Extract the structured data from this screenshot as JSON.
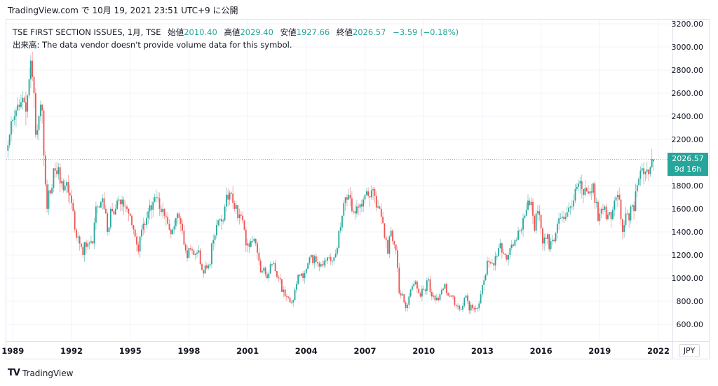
{
  "published": "TradingView.com で 10月 19, 2021 23:51 UTC+9 に公開",
  "legend": {
    "symbol": "TSE FIRST SECTION ISSUES, 1月, TSE",
    "open_label": "始値",
    "open": "2010.40",
    "high_label": "高値",
    "high": "2029.40",
    "low_label": "安値",
    "low": "1927.66",
    "close_label": "終値",
    "close": "2026.57",
    "change": "−3.59 (−0.18%)",
    "volume_note": "出来高: The data vendor doesn't provide volume data for this symbol."
  },
  "currency": "JPY",
  "last_price": {
    "value": "2026.57",
    "countdown": "9d 16h"
  },
  "brand": "TradingView",
  "colors": {
    "up": "#26a69a",
    "down": "#ef5350",
    "grid": "#f0f3fa",
    "text": "#131722"
  },
  "chart_data": {
    "type": "candlestick",
    "title": "TSE FIRST SECTION ISSUES, 1月, TSE",
    "interval": "monthly",
    "start": [
      1988,
      10
    ],
    "ylim": [
      560,
      3240
    ],
    "y_ticks": [
      "3200.00",
      "3000.00",
      "2800.00",
      "2600.00",
      "2400.00",
      "2200.00",
      "1800.00",
      "1600.00",
      "1400.00",
      "1200.00",
      "1000.00",
      "800.00",
      "600.00"
    ],
    "x_ticks": [
      "1989",
      "1992",
      "1995",
      "1998",
      "2001",
      "2004",
      "2007",
      "2010",
      "2013",
      "2016",
      "2019",
      "2022"
    ],
    "last_candle": {
      "open": 2010.4,
      "high": 2029.4,
      "low": 1927.66,
      "close": 2026.57
    },
    "closes": {
      "1988": [
        2150,
        2240,
        2357
      ],
      "1989": [
        2370,
        2400,
        2450,
        2500,
        2480,
        2520,
        2560,
        2520,
        2440,
        2580,
        2720,
        2881
      ],
      "1990": [
        2740,
        2600,
        2240,
        2280,
        2400,
        2500,
        2450,
        2060,
        1810,
        1600,
        1760,
        1733
      ],
      "1991": [
        1780,
        1950,
        1930,
        1900,
        1960,
        1820,
        1840,
        1760,
        1800,
        1830,
        1740,
        1714
      ],
      "1992": [
        1650,
        1580,
        1420,
        1350,
        1360,
        1300,
        1270,
        1200,
        1310,
        1270,
        1300,
        1307
      ],
      "1993": [
        1320,
        1300,
        1480,
        1620,
        1620,
        1610,
        1660,
        1690,
        1600,
        1560,
        1400,
        1439
      ],
      "1994": [
        1600,
        1580,
        1550,
        1600,
        1670,
        1680,
        1640,
        1680,
        1620,
        1620,
        1600,
        1559
      ],
      "1995": [
        1540,
        1460,
        1420,
        1360,
        1290,
        1230,
        1360,
        1420,
        1470,
        1460,
        1520,
        1577
      ],
      "1996": [
        1630,
        1590,
        1660,
        1700,
        1700,
        1690,
        1600,
        1570,
        1600,
        1540,
        1530,
        1470
      ],
      "1997": [
        1420,
        1380,
        1420,
        1450,
        1520,
        1560,
        1520,
        1470,
        1410,
        1290,
        1240,
        1175
      ],
      "1998": [
        1260,
        1250,
        1240,
        1200,
        1210,
        1220,
        1240,
        1120,
        1070,
        1040,
        1110,
        1086
      ],
      "1999": [
        1110,
        1120,
        1300,
        1330,
        1370,
        1460,
        1500,
        1510,
        1490,
        1500,
        1620,
        1722
      ],
      "2000": [
        1680,
        1740,
        1730,
        1650,
        1600,
        1630,
        1520,
        1550,
        1540,
        1500,
        1420,
        1283
      ],
      "2001": [
        1300,
        1270,
        1320,
        1320,
        1340,
        1300,
        1220,
        1150,
        1050,
        1060,
        1090,
        1032
      ],
      "2002": [
        1000,
        1040,
        1120,
        1120,
        1130,
        1060,
        1010,
        1000,
        990,
        880,
        900,
        843
      ],
      "2003": [
        840,
        830,
        790,
        790,
        810,
        900,
        950,
        1030,
        1020,
        1040,
        1000,
        1043
      ],
      "2004": [
        1080,
        1130,
        1180,
        1200,
        1130,
        1190,
        1140,
        1130,
        1100,
        1120,
        1110,
        1149
      ],
      "2005": [
        1150,
        1180,
        1180,
        1150,
        1150,
        1180,
        1210,
        1260,
        1410,
        1440,
        1540,
        1649
      ],
      "2006": [
        1700,
        1680,
        1720,
        1690,
        1580,
        1580,
        1560,
        1620,
        1610,
        1640,
        1620,
        1681
      ],
      "2007": [
        1720,
        1750,
        1710,
        1700,
        1760,
        1770,
        1710,
        1610,
        1620,
        1600,
        1530,
        1475
      ],
      "2008": [
        1350,
        1330,
        1210,
        1360,
        1410,
        1320,
        1290,
        1240,
        1090,
        870,
        850,
        860
      ],
      "2009": [
        790,
        740,
        770,
        840,
        900,
        930,
        950,
        970,
        910,
        870,
        840,
        908
      ],
      "2010": [
        900,
        890,
        980,
        990,
        880,
        840,
        850,
        810,
        830,
        810,
        860,
        898
      ],
      "2011": [
        910,
        950,
        870,
        850,
        840,
        850,
        840,
        770,
        760,
        760,
        730,
        728
      ],
      "2012": [
        760,
        830,
        850,
        800,
        720,
        770,
        740,
        730,
        740,
        740,
        780,
        860
      ],
      "2013": [
        940,
        980,
        1030,
        1150,
        1140,
        1130,
        1130,
        1110,
        1190,
        1190,
        1260,
        1302
      ],
      "2014": [
        1220,
        1210,
        1200,
        1160,
        1200,
        1260,
        1290,
        1280,
        1330,
        1330,
        1410,
        1408
      ],
      "2015": [
        1420,
        1520,
        1540,
        1590,
        1670,
        1630,
        1660,
        1540,
        1410,
        1560,
        1580,
        1547
      ],
      "2016": [
        1430,
        1300,
        1350,
        1340,
        1380,
        1250,
        1320,
        1330,
        1320,
        1390,
        1470,
        1519
      ],
      "2017": [
        1520,
        1530,
        1510,
        1530,
        1570,
        1610,
        1620,
        1620,
        1670,
        1770,
        1790,
        1818
      ],
      "2018": [
        1840,
        1770,
        1720,
        1780,
        1750,
        1730,
        1750,
        1740,
        1820,
        1650,
        1660,
        1494
      ],
      "2019": [
        1560,
        1600,
        1590,
        1620,
        1510,
        1550,
        1570,
        1510,
        1590,
        1670,
        1700,
        1721
      ],
      "2020": [
        1680,
        1510,
        1400,
        1460,
        1560,
        1560,
        1500,
        1620,
        1630,
        1580,
        1750,
        1805
      ],
      "2021": [
        1860,
        1930,
        1950,
        1900,
        1920,
        1940,
        1900,
        1960,
        2030,
        2026.57
      ]
    }
  }
}
